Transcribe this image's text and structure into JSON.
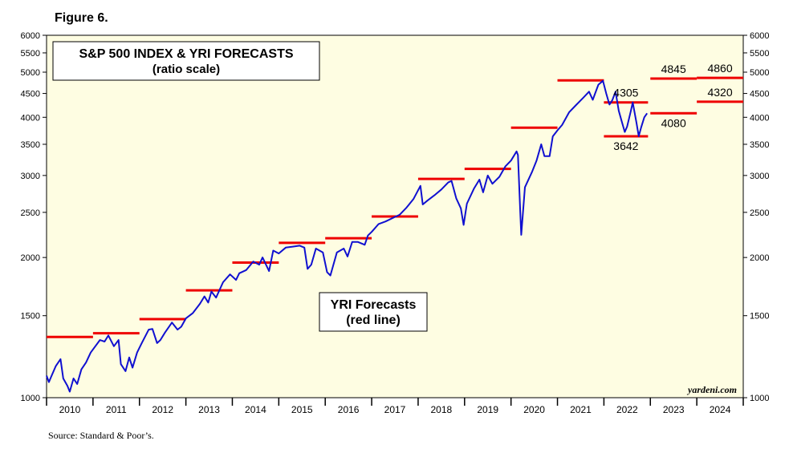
{
  "figure_label": "Figure 6.",
  "source_note": "Source: Standard & Poor’s.",
  "chart_data": {
    "type": "line",
    "title": "S&P 500 INDEX & YRI FORECASTS",
    "subtitle": "(ratio scale)",
    "yscale": "log",
    "ylim": [
      1000,
      6000
    ],
    "yticks": [
      1000,
      1500,
      2000,
      2500,
      3000,
      3500,
      4000,
      4500,
      5000,
      5500,
      6000
    ],
    "xlim": [
      2010,
      2025
    ],
    "xtick_labels": [
      "2010",
      "2011",
      "2012",
      "2013",
      "2014",
      "2015",
      "2016",
      "2017",
      "2018",
      "2019",
      "2020",
      "2021",
      "2022",
      "2023",
      "2024"
    ],
    "watermark": "yardeni.com",
    "legend_note": [
      "YRI Forecasts",
      "(red line)"
    ],
    "colors": {
      "index": "#1010d0",
      "forecast": "#ee0000",
      "background": "#fefde2"
    },
    "series": [
      {
        "name": "S&P 500 Index",
        "points": [
          [
            2010.0,
            1115
          ],
          [
            2010.05,
            1080
          ],
          [
            2010.1,
            1110
          ],
          [
            2010.2,
            1170
          ],
          [
            2010.3,
            1210
          ],
          [
            2010.36,
            1100
          ],
          [
            2010.45,
            1060
          ],
          [
            2010.5,
            1030
          ],
          [
            2010.58,
            1100
          ],
          [
            2010.66,
            1070
          ],
          [
            2010.75,
            1150
          ],
          [
            2010.85,
            1190
          ],
          [
            2010.95,
            1250
          ],
          [
            2011.05,
            1290
          ],
          [
            2011.15,
            1330
          ],
          [
            2011.25,
            1320
          ],
          [
            2011.33,
            1360
          ],
          [
            2011.45,
            1290
          ],
          [
            2011.55,
            1330
          ],
          [
            2011.6,
            1180
          ],
          [
            2011.7,
            1140
          ],
          [
            2011.78,
            1220
          ],
          [
            2011.85,
            1160
          ],
          [
            2011.95,
            1250
          ],
          [
            2012.05,
            1310
          ],
          [
            2012.2,
            1400
          ],
          [
            2012.28,
            1405
          ],
          [
            2012.38,
            1310
          ],
          [
            2012.45,
            1330
          ],
          [
            2012.55,
            1380
          ],
          [
            2012.7,
            1450
          ],
          [
            2012.82,
            1400
          ],
          [
            2012.9,
            1420
          ],
          [
            2013.0,
            1480
          ],
          [
            2013.15,
            1520
          ],
          [
            2013.3,
            1590
          ],
          [
            2013.4,
            1650
          ],
          [
            2013.48,
            1600
          ],
          [
            2013.55,
            1690
          ],
          [
            2013.65,
            1640
          ],
          [
            2013.8,
            1770
          ],
          [
            2013.95,
            1840
          ],
          [
            2014.08,
            1790
          ],
          [
            2014.15,
            1850
          ],
          [
            2014.3,
            1880
          ],
          [
            2014.45,
            1960
          ],
          [
            2014.58,
            1930
          ],
          [
            2014.65,
            2000
          ],
          [
            2014.79,
            1870
          ],
          [
            2014.88,
            2070
          ],
          [
            2015.0,
            2040
          ],
          [
            2015.15,
            2100
          ],
          [
            2015.3,
            2110
          ],
          [
            2015.45,
            2120
          ],
          [
            2015.55,
            2100
          ],
          [
            2015.62,
            1890
          ],
          [
            2015.7,
            1930
          ],
          [
            2015.8,
            2090
          ],
          [
            2015.95,
            2050
          ],
          [
            2016.04,
            1860
          ],
          [
            2016.11,
            1830
          ],
          [
            2016.25,
            2050
          ],
          [
            2016.4,
            2090
          ],
          [
            2016.48,
            2010
          ],
          [
            2016.58,
            2160
          ],
          [
            2016.7,
            2160
          ],
          [
            2016.85,
            2130
          ],
          [
            2016.92,
            2230
          ],
          [
            2017.0,
            2270
          ],
          [
            2017.15,
            2360
          ],
          [
            2017.3,
            2390
          ],
          [
            2017.45,
            2430
          ],
          [
            2017.6,
            2470
          ],
          [
            2017.75,
            2560
          ],
          [
            2017.9,
            2670
          ],
          [
            2018.05,
            2850
          ],
          [
            2018.1,
            2600
          ],
          [
            2018.2,
            2650
          ],
          [
            2018.35,
            2720
          ],
          [
            2018.5,
            2800
          ],
          [
            2018.65,
            2900
          ],
          [
            2018.72,
            2920
          ],
          [
            2018.82,
            2680
          ],
          [
            2018.92,
            2550
          ],
          [
            2018.98,
            2350
          ],
          [
            2019.05,
            2610
          ],
          [
            2019.2,
            2810
          ],
          [
            2019.32,
            2940
          ],
          [
            2019.4,
            2760
          ],
          [
            2019.5,
            3000
          ],
          [
            2019.6,
            2880
          ],
          [
            2019.75,
            2980
          ],
          [
            2019.88,
            3140
          ],
          [
            2020.0,
            3230
          ],
          [
            2020.12,
            3380
          ],
          [
            2020.15,
            3320
          ],
          [
            2020.2,
            2500
          ],
          [
            2020.22,
            2237
          ],
          [
            2020.3,
            2830
          ],
          [
            2020.45,
            3050
          ],
          [
            2020.55,
            3230
          ],
          [
            2020.65,
            3500
          ],
          [
            2020.72,
            3300
          ],
          [
            2020.83,
            3300
          ],
          [
            2020.9,
            3640
          ],
          [
            2021.0,
            3750
          ],
          [
            2021.1,
            3850
          ],
          [
            2021.25,
            4100
          ],
          [
            2021.4,
            4250
          ],
          [
            2021.55,
            4400
          ],
          [
            2021.68,
            4540
          ],
          [
            2021.76,
            4360
          ],
          [
            2021.88,
            4700
          ],
          [
            2021.98,
            4790
          ],
          [
            2022.05,
            4500
          ],
          [
            2022.12,
            4260
          ],
          [
            2022.18,
            4350
          ],
          [
            2022.25,
            4540
          ],
          [
            2022.32,
            4130
          ],
          [
            2022.38,
            3930
          ],
          [
            2022.45,
            3720
          ],
          [
            2022.5,
            3820
          ],
          [
            2022.58,
            4130
          ],
          [
            2022.62,
            4305
          ],
          [
            2022.7,
            3900
          ],
          [
            2022.75,
            3642
          ],
          [
            2022.8,
            3800
          ],
          [
            2022.87,
            4000
          ],
          [
            2022.93,
            4080
          ]
        ]
      }
    ],
    "forecasts": [
      {
        "x0": 2010.0,
        "x1": 2011.0,
        "value": 1350
      },
      {
        "x0": 2011.0,
        "x1": 2012.0,
        "value": 1375
      },
      {
        "x0": 2012.0,
        "x1": 2013.0,
        "value": 1475
      },
      {
        "x0": 2013.0,
        "x1": 2014.0,
        "value": 1700
      },
      {
        "x0": 2014.0,
        "x1": 2015.0,
        "value": 1950
      },
      {
        "x0": 2015.0,
        "x1": 2016.0,
        "value": 2150
      },
      {
        "x0": 2016.0,
        "x1": 2017.0,
        "value": 2200
      },
      {
        "x0": 2017.0,
        "x1": 2018.0,
        "value": 2450
      },
      {
        "x0": 2018.0,
        "x1": 2019.0,
        "value": 2950
      },
      {
        "x0": 2019.0,
        "x1": 2020.0,
        "value": 3100
      },
      {
        "x0": 2020.0,
        "x1": 2021.0,
        "value": 3800
      },
      {
        "x0": 2021.0,
        "x1": 2022.0,
        "value": 4800
      },
      {
        "x0": 2022.0,
        "x1": 2022.95,
        "value": 4305,
        "label": "4305",
        "label_pos": "above"
      },
      {
        "x0": 2022.0,
        "x1": 2022.95,
        "value": 3642,
        "label": "3642",
        "label_pos": "below"
      },
      {
        "x0": 2023.0,
        "x1": 2024.0,
        "value": 4845,
        "label": "4845",
        "label_pos": "above"
      },
      {
        "x0": 2023.0,
        "x1": 2024.0,
        "value": 4080,
        "label": "4080",
        "label_pos": "below"
      },
      {
        "x0": 2024.0,
        "x1": 2025.0,
        "value": 4860,
        "label": "4860",
        "label_pos": "above"
      },
      {
        "x0": 2024.0,
        "x1": 2025.0,
        "value": 4320,
        "label": "4320",
        "label_pos": "above"
      }
    ]
  }
}
